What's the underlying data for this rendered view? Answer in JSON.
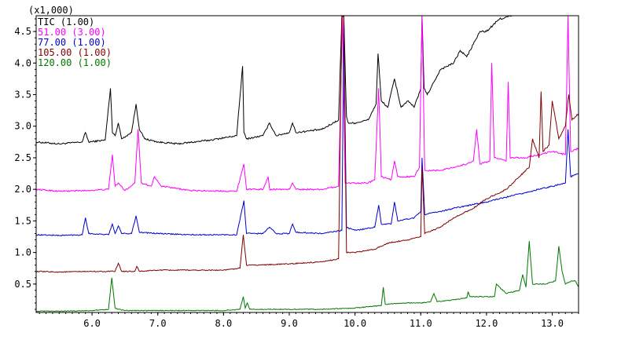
{
  "chart_data": {
    "type": "line",
    "y_multiplier_label": "(x1,000)",
    "xlim": [
      5.15,
      13.4
    ],
    "ylim": [
      0.05,
      4.75
    ],
    "x_ticks": [
      "6.0",
      "7.0",
      "8.0",
      "9.0",
      "10.0",
      "11.0",
      "12.0",
      "13.0"
    ],
    "x_tick_values": [
      6.0,
      7.0,
      8.0,
      9.0,
      10.0,
      11.0,
      12.0,
      13.0
    ],
    "y_ticks": [
      "0.5",
      "1.0",
      "1.5",
      "2.0",
      "2.5",
      "3.0",
      "3.5",
      "4.0",
      "4.5"
    ],
    "y_tick_values": [
      0.5,
      1.0,
      1.5,
      2.0,
      2.5,
      3.0,
      3.5,
      4.0,
      4.5
    ],
    "series": [
      {
        "name": "TIC (1.00)",
        "color": "#000000",
        "x": [
          5.15,
          5.5,
          5.85,
          5.9,
          5.95,
          6.2,
          6.28,
          6.31,
          6.35,
          6.4,
          6.45,
          6.6,
          6.67,
          6.72,
          6.8,
          7.0,
          7.3,
          7.8,
          8.2,
          8.29,
          8.31,
          8.35,
          8.6,
          8.7,
          8.8,
          9.0,
          9.05,
          9.1,
          9.5,
          9.75,
          9.8,
          9.83,
          9.87,
          9.9,
          10.0,
          10.2,
          10.32,
          10.35,
          10.4,
          10.5,
          10.6,
          10.7,
          10.8,
          10.9,
          11.0,
          11.02,
          11.05,
          11.1,
          11.2,
          11.3,
          11.5,
          11.6,
          11.7,
          11.8,
          11.9,
          12.0,
          12.2,
          12.4
        ],
        "y": [
          2.75,
          2.72,
          2.75,
          2.9,
          2.75,
          2.78,
          3.6,
          2.9,
          2.85,
          3.05,
          2.8,
          2.9,
          3.35,
          2.95,
          2.8,
          2.75,
          2.72,
          2.78,
          2.85,
          3.95,
          2.9,
          2.8,
          2.85,
          3.05,
          2.85,
          2.9,
          3.05,
          2.9,
          2.95,
          3.1,
          4.75,
          4.75,
          3.15,
          3.05,
          3.05,
          3.1,
          3.35,
          4.15,
          3.4,
          3.3,
          3.75,
          3.3,
          3.4,
          3.3,
          3.6,
          4.75,
          3.6,
          3.5,
          3.7,
          3.9,
          4.0,
          4.2,
          4.1,
          4.3,
          4.5,
          4.5,
          4.7,
          4.75
        ]
      },
      {
        "name": "51.00 (3.00)",
        "color": "#ff00ff",
        "x": [
          5.15,
          5.5,
          5.9,
          6.25,
          6.31,
          6.35,
          6.4,
          6.5,
          6.65,
          6.7,
          6.75,
          6.9,
          6.95,
          7.05,
          7.5,
          8.2,
          8.31,
          8.35,
          8.6,
          8.68,
          8.7,
          9.0,
          9.05,
          9.1,
          9.5,
          9.75,
          9.81,
          9.85,
          10.0,
          10.2,
          10.3,
          10.36,
          10.4,
          10.55,
          10.6,
          10.65,
          10.9,
          10.98,
          11.02,
          11.06,
          11.3,
          11.5,
          11.7,
          11.8,
          11.85,
          11.9,
          12.05,
          12.08,
          12.12,
          12.3,
          12.33,
          12.36,
          12.6,
          12.8,
          13.0,
          13.2,
          13.24,
          13.28,
          13.4
        ],
        "y": [
          2.0,
          1.97,
          1.98,
          2.0,
          2.55,
          2.05,
          2.1,
          1.98,
          2.1,
          2.95,
          2.1,
          2.05,
          2.2,
          2.05,
          1.98,
          1.97,
          2.4,
          2.0,
          2.0,
          2.2,
          2.0,
          2.0,
          2.1,
          2.0,
          2.0,
          2.05,
          4.75,
          2.1,
          2.1,
          2.1,
          2.15,
          3.6,
          2.2,
          2.15,
          2.45,
          2.2,
          2.2,
          2.35,
          4.75,
          2.3,
          2.3,
          2.35,
          2.4,
          2.45,
          2.95,
          2.4,
          2.45,
          4.0,
          2.5,
          2.45,
          3.7,
          2.5,
          2.5,
          2.55,
          2.6,
          2.55,
          4.75,
          2.6,
          2.65
        ]
      },
      {
        "name": "77.00 (1.00)",
        "color": "#0000cc",
        "x": [
          5.15,
          5.5,
          5.85,
          5.9,
          5.95,
          6.25,
          6.31,
          6.35,
          6.4,
          6.45,
          6.6,
          6.67,
          6.72,
          7.0,
          7.5,
          8.2,
          8.31,
          8.35,
          8.6,
          8.7,
          8.8,
          9.0,
          9.05,
          9.1,
          9.5,
          9.8,
          9.83,
          9.87,
          10.0,
          10.3,
          10.36,
          10.4,
          10.55,
          10.6,
          10.65,
          10.9,
          11.0,
          11.02,
          11.06,
          11.3,
          11.5,
          12.0,
          12.2,
          12.4,
          12.6,
          12.8,
          13.0,
          13.2,
          13.24,
          13.28,
          13.4
        ],
        "y": [
          1.28,
          1.27,
          1.28,
          1.55,
          1.3,
          1.28,
          1.45,
          1.3,
          1.42,
          1.3,
          1.3,
          1.58,
          1.32,
          1.3,
          1.28,
          1.28,
          1.82,
          1.3,
          1.3,
          1.4,
          1.3,
          1.3,
          1.45,
          1.32,
          1.3,
          1.35,
          4.75,
          1.4,
          1.35,
          1.4,
          1.75,
          1.45,
          1.45,
          1.8,
          1.5,
          1.55,
          1.65,
          2.5,
          1.6,
          1.65,
          1.7,
          1.8,
          1.85,
          1.9,
          1.95,
          2.0,
          2.05,
          2.1,
          2.95,
          2.2,
          2.25
        ]
      },
      {
        "name": "105.00 (1.00)",
        "color": "#800000",
        "x": [
          5.15,
          5.5,
          6.0,
          6.35,
          6.4,
          6.45,
          6.65,
          6.68,
          6.72,
          7.0,
          7.5,
          8.0,
          8.25,
          8.3,
          8.35,
          8.5,
          9.0,
          9.5,
          9.75,
          9.8,
          9.83,
          9.87,
          10.0,
          10.3,
          10.5,
          10.8,
          11.0,
          11.02,
          11.06,
          11.3,
          11.5,
          11.8,
          12.0,
          12.3,
          12.5,
          12.65,
          12.7,
          12.8,
          12.83,
          12.86,
          12.95,
          13.0,
          13.1,
          13.2,
          13.25,
          13.3,
          13.4
        ],
        "y": [
          0.7,
          0.69,
          0.7,
          0.7,
          0.83,
          0.7,
          0.7,
          0.78,
          0.7,
          0.72,
          0.72,
          0.72,
          0.75,
          1.28,
          0.8,
          0.8,
          0.82,
          0.85,
          0.9,
          4.75,
          4.75,
          1.0,
          1.0,
          1.05,
          1.15,
          1.2,
          1.25,
          2.35,
          1.3,
          1.4,
          1.55,
          1.7,
          1.85,
          2.0,
          2.2,
          2.35,
          2.8,
          2.5,
          3.55,
          2.6,
          2.7,
          3.4,
          2.8,
          3.0,
          3.5,
          3.1,
          3.2
        ]
      },
      {
        "name": "120.00 (1.00)",
        "color": "#007700",
        "x": [
          5.15,
          5.5,
          6.0,
          6.25,
          6.3,
          6.35,
          6.4,
          6.5,
          7.0,
          7.5,
          8.0,
          8.25,
          8.3,
          8.33,
          8.36,
          8.4,
          8.5,
          9.0,
          9.5,
          10.0,
          10.3,
          10.4,
          10.43,
          10.46,
          10.5,
          10.8,
          11.0,
          11.15,
          11.2,
          11.25,
          11.5,
          11.7,
          11.72,
          11.75,
          12.0,
          12.12,
          12.15,
          12.3,
          12.5,
          12.55,
          12.6,
          12.65,
          12.7,
          12.9,
          13.05,
          13.1,
          13.15,
          13.2,
          13.3,
          13.35,
          13.4
        ],
        "y": [
          0.07,
          0.07,
          0.08,
          0.1,
          0.6,
          0.12,
          0.1,
          0.08,
          0.08,
          0.08,
          0.08,
          0.1,
          0.3,
          0.12,
          0.2,
          0.1,
          0.1,
          0.1,
          0.1,
          0.12,
          0.15,
          0.16,
          0.45,
          0.18,
          0.18,
          0.2,
          0.2,
          0.22,
          0.35,
          0.22,
          0.25,
          0.28,
          0.38,
          0.3,
          0.3,
          0.3,
          0.5,
          0.35,
          0.4,
          0.65,
          0.45,
          1.18,
          0.5,
          0.5,
          0.55,
          1.1,
          0.7,
          0.5,
          0.55,
          0.55,
          0.45
        ]
      }
    ]
  }
}
